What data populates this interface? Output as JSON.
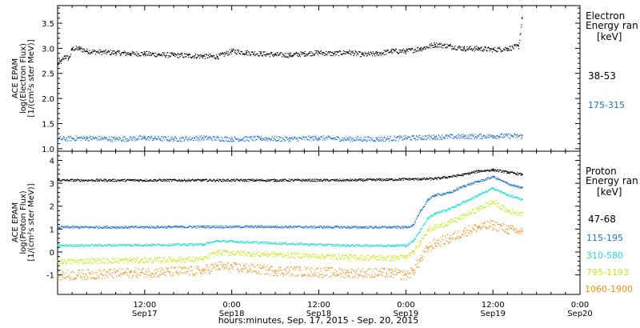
{
  "xlabel": "hours:minutes, Sep. 17, 2015 - Sep. 20, 2015",
  "x_ticks": [
    {
      "hour": 0,
      "time": "",
      "date": ""
    },
    {
      "hour": 12,
      "time": "12:00",
      "date": "Sep17"
    },
    {
      "hour": 24,
      "time": "0:00",
      "date": "Sep18"
    },
    {
      "hour": 36,
      "time": "12:00",
      "date": "Sep18"
    },
    {
      "hour": 48,
      "time": "0:00",
      "date": "Sep19"
    },
    {
      "hour": 60,
      "time": "12:00",
      "date": "Sep19"
    },
    {
      "hour": 72,
      "time": "0:00",
      "date": "Sep20"
    }
  ],
  "chart_data": [
    {
      "type": "scatter",
      "panel": "electron",
      "ylabel": [
        "ACE EPAM",
        "log(Electron Flux)",
        "[1/(cm²s ster MeV)]"
      ],
      "ylim": [
        0.95,
        3.85
      ],
      "xlim_hours": [
        0,
        72
      ],
      "y_ticks": [
        1.0,
        1.5,
        2.0,
        2.5,
        3.0,
        3.5
      ],
      "legend_title": [
        "Electron",
        "Energy ran"
      ],
      "legend_unit": "[keV]",
      "series": [
        {
          "name": "38-53",
          "color": "#000000",
          "x": [
            0,
            0.5,
            1,
            1.5,
            2,
            3,
            4,
            6,
            8,
            10,
            12,
            14,
            16,
            18,
            20,
            22,
            24,
            26,
            28,
            30,
            32,
            34,
            36,
            38,
            40,
            42,
            44,
            46,
            48,
            50,
            52,
            54,
            56,
            58,
            60,
            62,
            63.5,
            64
          ],
          "y": [
            2.7,
            2.75,
            2.85,
            2.8,
            3.0,
            3.0,
            2.95,
            2.93,
            2.92,
            2.9,
            2.9,
            2.88,
            2.87,
            2.86,
            2.85,
            2.84,
            2.95,
            2.92,
            2.9,
            2.88,
            2.87,
            2.9,
            2.92,
            2.9,
            2.93,
            2.88,
            2.9,
            2.95,
            2.95,
            3.0,
            3.08,
            3.05,
            3.0,
            3.0,
            2.98,
            3.0,
            3.05,
            3.6
          ]
        },
        {
          "name": "175-315",
          "color": "#1f6fd0",
          "x": [
            0,
            4,
            8,
            12,
            16,
            20,
            24,
            28,
            32,
            36,
            40,
            44,
            48,
            52,
            56,
            60,
            64
          ],
          "y": [
            1.2,
            1.22,
            1.2,
            1.22,
            1.2,
            1.22,
            1.2,
            1.21,
            1.2,
            1.22,
            1.2,
            1.2,
            1.22,
            1.24,
            1.25,
            1.26,
            1.26
          ]
        }
      ]
    },
    {
      "type": "scatter",
      "panel": "proton",
      "ylabel": [
        "ACE EPAM",
        "log(Proton Flux)",
        "[1/(cm²s ster MeV)]"
      ],
      "ylim": [
        -1.85,
        4.4
      ],
      "xlim_hours": [
        0,
        72
      ],
      "y_ticks": [
        -1,
        0,
        1,
        2,
        3,
        4
      ],
      "legend_title": [
        "Proton",
        "Energy ran"
      ],
      "legend_unit": "[keV]",
      "series": [
        {
          "name": "47-68",
          "color": "#000000",
          "x": [
            0,
            10,
            20,
            30,
            40,
            46,
            48,
            50,
            52,
            54,
            56,
            58,
            60,
            62,
            64
          ],
          "y": [
            3.15,
            3.15,
            3.15,
            3.15,
            3.15,
            3.18,
            3.2,
            3.2,
            3.22,
            3.3,
            3.4,
            3.55,
            3.6,
            3.5,
            3.4
          ]
        },
        {
          "name": "115-195",
          "color": "#1f6fd0",
          "x": [
            0,
            10,
            20,
            30,
            40,
            46,
            48,
            49,
            50,
            51,
            52,
            54,
            56,
            58,
            60,
            62,
            64
          ],
          "y": [
            1.1,
            1.1,
            1.12,
            1.12,
            1.1,
            1.1,
            1.1,
            1.2,
            1.8,
            2.3,
            2.5,
            2.6,
            2.9,
            3.1,
            3.3,
            3.0,
            2.8
          ]
        },
        {
          "name": "310-580",
          "color": "#19e0d0",
          "x": [
            0,
            10,
            20,
            22,
            30,
            40,
            46,
            48,
            49,
            50,
            51,
            52,
            54,
            56,
            58,
            60,
            62,
            64
          ],
          "y": [
            0.3,
            0.32,
            0.35,
            0.5,
            0.4,
            0.3,
            0.3,
            0.3,
            0.5,
            1.0,
            1.5,
            1.7,
            1.9,
            2.2,
            2.5,
            2.8,
            2.5,
            2.3
          ]
        },
        {
          "name": "795-1193",
          "color": "#c8e617",
          "x": [
            0,
            10,
            20,
            22,
            30,
            40,
            46,
            48,
            49,
            50,
            51,
            52,
            54,
            56,
            58,
            60,
            62,
            64
          ],
          "y": [
            -0.4,
            -0.35,
            -0.3,
            0.0,
            -0.1,
            -0.2,
            -0.25,
            -0.2,
            0.0,
            0.5,
            1.0,
            1.1,
            1.3,
            1.6,
            1.9,
            2.2,
            1.8,
            1.7
          ]
        },
        {
          "name": "1060-1900",
          "color": "#f08c10",
          "x": [
            0,
            10,
            20,
            22,
            30,
            40,
            46,
            48,
            49,
            50,
            51,
            52,
            54,
            56,
            58,
            60,
            62,
            64
          ],
          "y": [
            -1.0,
            -0.9,
            -0.8,
            -0.6,
            -0.8,
            -0.9,
            -0.9,
            -1.0,
            -0.8,
            -0.3,
            0.2,
            0.4,
            0.6,
            0.9,
            1.1,
            1.2,
            1.0,
            0.9
          ]
        }
      ]
    }
  ]
}
